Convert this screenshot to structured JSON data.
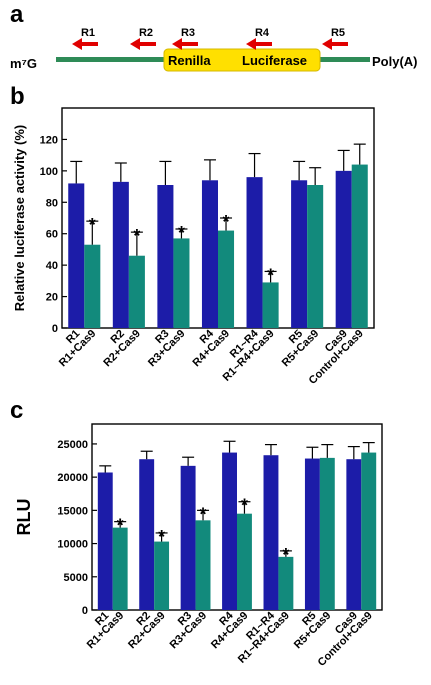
{
  "figure": {
    "panel_a_label": "a",
    "panel_b_label": "b",
    "panel_c_label": "c"
  },
  "diagram": {
    "cap_label": "m⁷G",
    "polya_label": "Poly(A)",
    "gene_label_left": "Renilla",
    "gene_label_right": "Luciferase",
    "primers": [
      "R1",
      "R2",
      "R3",
      "R4",
      "R5"
    ],
    "colors": {
      "line": "#2e8b57",
      "gene_box": "#ffe000",
      "arrow": "#e00000"
    }
  },
  "colors": {
    "series_control": "#1c1ca8",
    "series_cas9": "#128a7c"
  },
  "chart_data": [
    {
      "type": "bar",
      "ylabel": "Relative luciferase activity (%)",
      "ylim": [
        0,
        140
      ],
      "yticks": [
        0,
        20,
        40,
        60,
        80,
        100,
        120
      ],
      "categories": [
        "R1",
        "R1+Cas9",
        "R2",
        "R2+Cas9",
        "R3",
        "R3+Cas9",
        "R4",
        "R4+Cas9",
        "R1~R4",
        "R1~R4+Cas9",
        "R5",
        "R5+Cas9",
        "Cas9",
        "Control+Cas9"
      ],
      "values": [
        92,
        53,
        93,
        46,
        91,
        57,
        94,
        62,
        96,
        29,
        94,
        91,
        100,
        104
      ],
      "errors": [
        14,
        15,
        12,
        15,
        15,
        6,
        13,
        8,
        15,
        7,
        12,
        11,
        13,
        13
      ],
      "significant": [
        false,
        true,
        false,
        true,
        false,
        true,
        false,
        true,
        false,
        true,
        false,
        false,
        false,
        false
      ],
      "star_label": "*"
    },
    {
      "type": "bar",
      "ylabel": "RLU",
      "ylim": [
        0,
        28000
      ],
      "yticks": [
        0,
        5000,
        10000,
        15000,
        20000,
        25000
      ],
      "categories": [
        "R1",
        "R1+Cas9",
        "R2",
        "R2+Cas9",
        "R3",
        "R3+Cas9",
        "R4",
        "R4+Cas9",
        "R1~R4",
        "R1~R4+Cas9",
        "R5",
        "R5+Cas9",
        "Cas9",
        "Control+Cas9"
      ],
      "values": [
        20700,
        12400,
        22700,
        10300,
        21700,
        13500,
        23700,
        14500,
        23300,
        8000,
        22800,
        22900,
        22700,
        23700
      ],
      "errors": [
        1000,
        900,
        1200,
        1300,
        1300,
        1500,
        1700,
        1800,
        1600,
        900,
        1700,
        2000,
        1900,
        1500
      ],
      "significant": [
        false,
        true,
        false,
        true,
        false,
        true,
        false,
        true,
        false,
        true,
        false,
        false,
        false,
        false
      ],
      "star_label": "*"
    }
  ]
}
